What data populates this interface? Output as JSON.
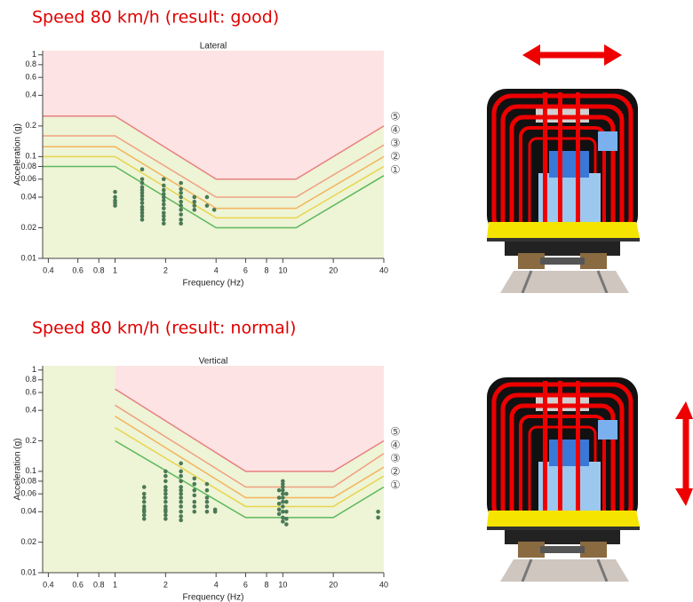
{
  "chart_data": [
    {
      "type": "scatter",
      "title": "Speed 80 km/h (result: good)",
      "subtitle": "Lateral",
      "xlabel": "Frequency (Hz)",
      "ylabel": "Acceleration (g)",
      "log_x": true,
      "log_y": true,
      "xlim": [
        0.37,
        40
      ],
      "ylim": [
        0.01,
        1.1
      ],
      "xticks": [
        0.4,
        0.6,
        0.8,
        1,
        2,
        4,
        6,
        8,
        10,
        20,
        40
      ],
      "yticks": [
        0.01,
        0.02,
        0.04,
        0.06,
        0.08,
        0.1,
        0.2,
        0.4,
        0.6,
        0.8,
        1
      ],
      "series": [
        {
          "name": "①",
          "color": "#5cb85c",
          "x": [
            0.37,
            1,
            4,
            12,
            40
          ],
          "values": [
            0.08,
            0.08,
            0.02,
            0.02,
            0.065
          ]
        },
        {
          "name": "②",
          "color": "#e8d44d",
          "x": [
            0.37,
            1,
            4,
            12,
            40
          ],
          "values": [
            0.1,
            0.1,
            0.025,
            0.025,
            0.08
          ]
        },
        {
          "name": "③",
          "color": "#f2b45c",
          "x": [
            0.37,
            1,
            4,
            12,
            40
          ],
          "values": [
            0.125,
            0.125,
            0.031,
            0.031,
            0.1
          ]
        },
        {
          "name": "④",
          "color": "#f0a080",
          "x": [
            0.37,
            1,
            4,
            12,
            40
          ],
          "values": [
            0.16,
            0.16,
            0.04,
            0.04,
            0.13
          ]
        },
        {
          "name": "⑤",
          "color": "#e88080",
          "x": [
            0.37,
            1,
            4,
            12,
            40
          ],
          "values": [
            0.25,
            0.25,
            0.06,
            0.06,
            0.2
          ]
        }
      ],
      "points": {
        "color": "#4a7a55",
        "x": [
          1,
          1,
          1,
          1,
          1,
          1.45,
          1.45,
          1.45,
          1.45,
          1.45,
          1.45,
          1.45,
          1.45,
          1.45,
          1.45,
          1.45,
          1.45,
          1.45,
          1.45,
          1.95,
          1.95,
          1.95,
          1.95,
          1.95,
          1.95,
          1.95,
          1.95,
          1.95,
          1.95,
          1.95,
          1.95,
          2.47,
          2.47,
          2.47,
          2.47,
          2.47,
          2.47,
          2.47,
          2.47,
          2.47,
          2.47,
          2.97,
          2.97,
          2.97,
          2.97,
          3.53,
          3.53,
          3.9
        ],
        "y": [
          0.045,
          0.04,
          0.037,
          0.035,
          0.033,
          0.075,
          0.06,
          0.055,
          0.05,
          0.047,
          0.044,
          0.041,
          0.038,
          0.035,
          0.032,
          0.03,
          0.028,
          0.026,
          0.024,
          0.06,
          0.052,
          0.047,
          0.043,
          0.04,
          0.037,
          0.034,
          0.031,
          0.028,
          0.026,
          0.024,
          0.022,
          0.055,
          0.048,
          0.044,
          0.04,
          0.036,
          0.033,
          0.03,
          0.027,
          0.024,
          0.022,
          0.04,
          0.036,
          0.033,
          0.03,
          0.04,
          0.033,
          0.03
        ]
      }
    },
    {
      "type": "scatter",
      "title": "Speed 80 km/h (result: normal)",
      "subtitle": "Vertical",
      "xlabel": "Frequency (Hz)",
      "ylabel": "Acceleration (g)",
      "log_x": true,
      "log_y": true,
      "xlim": [
        0.37,
        40
      ],
      "ylim": [
        0.01,
        1.1
      ],
      "xticks": [
        0.4,
        0.6,
        0.8,
        1,
        2,
        4,
        6,
        8,
        10,
        20,
        40
      ],
      "yticks": [
        0.01,
        0.02,
        0.04,
        0.06,
        0.08,
        0.1,
        0.2,
        0.4,
        0.6,
        0.8,
        1
      ],
      "series": [
        {
          "name": "①",
          "color": "#5cb85c",
          "x": [
            1,
            6,
            20,
            40
          ],
          "values": [
            0.2,
            0.035,
            0.035,
            0.07
          ]
        },
        {
          "name": "②",
          "color": "#e8d44d",
          "x": [
            1,
            6,
            20,
            40
          ],
          "values": [
            0.27,
            0.045,
            0.045,
            0.09
          ]
        },
        {
          "name": "③",
          "color": "#f2b45c",
          "x": [
            1,
            6,
            20,
            40
          ],
          "values": [
            0.35,
            0.055,
            0.055,
            0.11
          ]
        },
        {
          "name": "④",
          "color": "#f0a080",
          "x": [
            1,
            6,
            20,
            40
          ],
          "values": [
            0.45,
            0.07,
            0.07,
            0.15
          ]
        },
        {
          "name": "⑤",
          "color": "#e88080",
          "x": [
            1,
            6,
            20,
            40
          ],
          "values": [
            0.65,
            0.1,
            0.1,
            0.2
          ]
        }
      ],
      "points": {
        "color": "#4a7a55",
        "x": [
          1.49,
          1.49,
          1.49,
          1.49,
          1.49,
          1.49,
          1.49,
          1.49,
          1.49,
          2,
          2,
          2,
          2,
          2,
          2,
          2,
          2,
          2,
          2,
          2,
          2,
          2,
          2.47,
          2.47,
          2.47,
          2.47,
          2.47,
          2.47,
          2.47,
          2.47,
          2.47,
          2.47,
          2.47,
          2.47,
          2.47,
          2.97,
          2.97,
          2.97,
          2.97,
          2.97,
          2.97,
          2.97,
          3.53,
          3.53,
          3.53,
          3.53,
          3.53,
          3.53,
          3.95,
          3.95,
          9.5,
          9.5,
          9.5,
          9.5,
          9.5,
          10,
          10,
          10,
          10,
          10,
          10,
          10,
          10,
          10,
          10,
          10,
          10.5,
          10.5,
          10.5,
          10.5,
          10.5,
          37,
          37
        ],
        "y": [
          0.07,
          0.06,
          0.055,
          0.05,
          0.045,
          0.042,
          0.04,
          0.037,
          0.034,
          0.1,
          0.09,
          0.08,
          0.07,
          0.065,
          0.06,
          0.055,
          0.05,
          0.045,
          0.042,
          0.04,
          0.037,
          0.034,
          0.12,
          0.1,
          0.09,
          0.08,
          0.07,
          0.065,
          0.06,
          0.055,
          0.05,
          0.045,
          0.04,
          0.036,
          0.033,
          0.085,
          0.075,
          0.065,
          0.058,
          0.05,
          0.045,
          0.04,
          0.075,
          0.065,
          0.055,
          0.05,
          0.045,
          0.04,
          0.042,
          0.04,
          0.065,
          0.055,
          0.048,
          0.042,
          0.038,
          0.08,
          0.075,
          0.07,
          0.065,
          0.06,
          0.055,
          0.05,
          0.045,
          0.04,
          0.035,
          0.032,
          0.06,
          0.05,
          0.04,
          0.034,
          0.03,
          0.04,
          0.035
        ]
      }
    }
  ]
}
